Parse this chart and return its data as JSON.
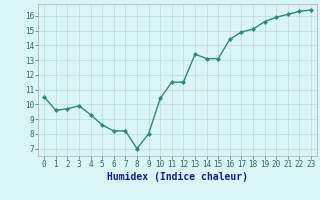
{
  "x": [
    0,
    1,
    2,
    3,
    4,
    5,
    6,
    7,
    8,
    9,
    10,
    11,
    12,
    13,
    14,
    15,
    16,
    17,
    18,
    19,
    20,
    21,
    22,
    23
  ],
  "y": [
    10.5,
    9.6,
    9.7,
    9.9,
    9.3,
    8.6,
    8.2,
    8.2,
    7.0,
    8.0,
    10.4,
    11.5,
    11.5,
    13.4,
    13.1,
    13.1,
    14.4,
    14.9,
    15.1,
    15.6,
    15.9,
    16.1,
    16.3,
    16.4
  ],
  "line_color": "#2e8b6e",
  "marker": "D",
  "marker_size": 2,
  "bg_color": "#d9f5f5",
  "grid_color": "#c4dcdc",
  "xlabel": "Humidex (Indice chaleur)",
  "xlabel_fontsize": 7,
  "xlim": [
    -0.5,
    23.5
  ],
  "ylim": [
    6.5,
    16.8
  ],
  "yticks": [
    7,
    8,
    9,
    10,
    11,
    12,
    13,
    14,
    15,
    16
  ],
  "xticks": [
    0,
    1,
    2,
    3,
    4,
    5,
    6,
    7,
    8,
    9,
    10,
    11,
    12,
    13,
    14,
    15,
    16,
    17,
    18,
    19,
    20,
    21,
    22,
    23
  ],
  "tick_fontsize": 5.5,
  "line_width": 1.0,
  "tick_color": "#2e6b5e",
  "xlabel_color": "#1a1a8c"
}
